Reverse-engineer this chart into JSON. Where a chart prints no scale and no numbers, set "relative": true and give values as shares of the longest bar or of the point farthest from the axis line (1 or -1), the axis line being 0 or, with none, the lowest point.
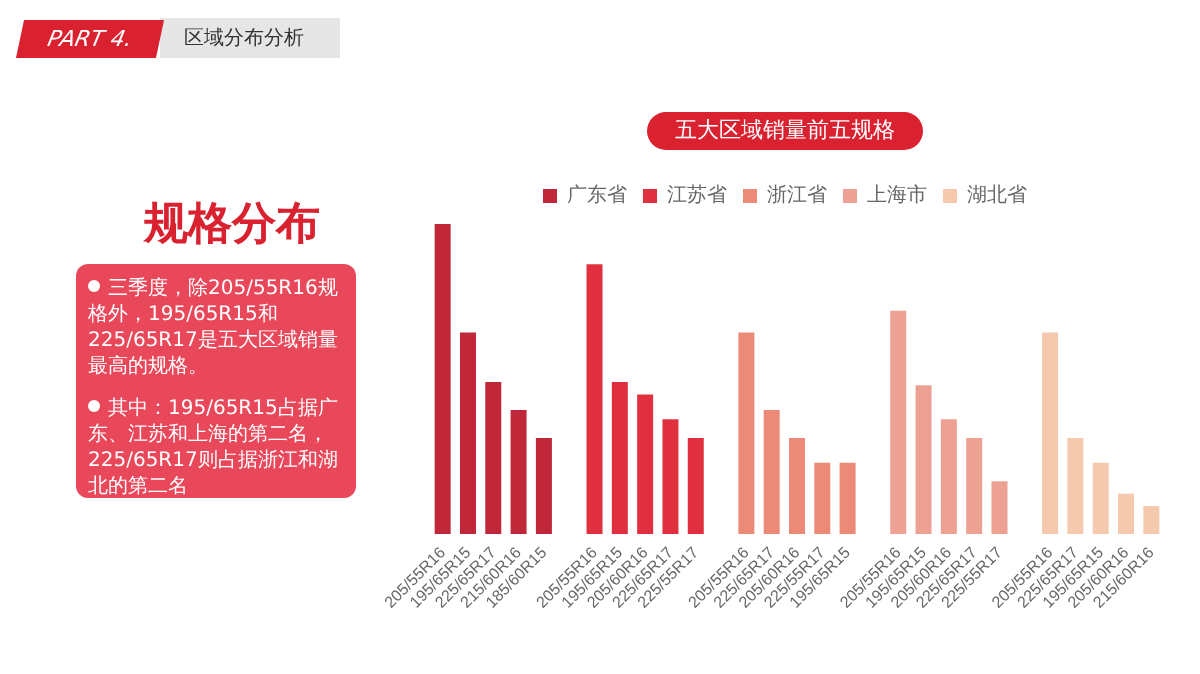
{
  "chart_data": {
    "type": "bar",
    "title": "五大区域销量前五规格",
    "relative": true,
    "legend": "top",
    "tick_labels": "x",
    "annotations": [
      "PART 4.",
      "区域分布分析",
      "规格分布",
      "三季度，除205/55R16规格外，195/65R15和225/65R17是五大区域销量最高的规格。",
      "其中：195/65R15占据广东、江苏和上海的第二名，225/65R17则占据浙江和湖北的第二名"
    ],
    "categories": [
      "205/55R16",
      "195/65R15",
      "225/65R17",
      "215/60R16",
      "185/60R15",
      null,
      "205/55R16",
      "195/65R15",
      "205/60R16",
      "225/65R17",
      "225/55R17",
      null,
      "205/55R16",
      "225/65R17",
      "205/60R16",
      "225/55R17",
      "195/65R15",
      null,
      "205/55R16",
      "195/65R15",
      "205/60R16",
      "225/65R17",
      "225/55R17",
      null,
      "205/55R16",
      "225/65R17",
      "195/65R15",
      "205/60R16",
      "215/60R16"
    ],
    "series": [
      {
        "name": "广东省",
        "color": "#c0283a",
        "values": [
          1,
          0.65,
          0.49,
          0.4,
          0.31,
          null,
          null,
          null,
          null,
          null,
          null,
          null,
          null,
          null,
          null,
          null,
          null,
          null,
          null,
          null,
          null,
          null,
          null,
          null,
          null,
          null,
          null,
          null,
          null
        ]
      },
      {
        "name": "江苏省",
        "color": "#e0303f",
        "values": [
          null,
          null,
          null,
          null,
          null,
          null,
          0.87,
          0.49,
          0.45,
          0.37,
          0.31,
          null,
          null,
          null,
          null,
          null,
          null,
          null,
          null,
          null,
          null,
          null,
          null,
          null,
          null,
          null,
          null,
          null,
          null
        ]
      },
      {
        "name": "浙江省",
        "color": "#ec8a78",
        "values": [
          null,
          null,
          null,
          null,
          null,
          null,
          null,
          null,
          null,
          null,
          null,
          null,
          0.65,
          0.4,
          0.31,
          0.23,
          0.23,
          null,
          null,
          null,
          null,
          null,
          null,
          null,
          null,
          null,
          null,
          null,
          null
        ]
      },
      {
        "name": "上海市",
        "color": "#eda192",
        "values": [
          null,
          null,
          null,
          null,
          null,
          null,
          null,
          null,
          null,
          null,
          null,
          null,
          null,
          null,
          null,
          null,
          null,
          null,
          0.72,
          0.48,
          0.37,
          0.31,
          0.17,
          null,
          null,
          null,
          null,
          null,
          null
        ]
      },
      {
        "name": "湖北省",
        "color": "#f4c9ae",
        "values": [
          null,
          null,
          null,
          null,
          null,
          null,
          null,
          null,
          null,
          null,
          null,
          null,
          null,
          null,
          null,
          null,
          null,
          null,
          null,
          null,
          null,
          null,
          null,
          null,
          0.65,
          0.31,
          0.23,
          0.13,
          0.09
        ]
      }
    ]
  }
}
